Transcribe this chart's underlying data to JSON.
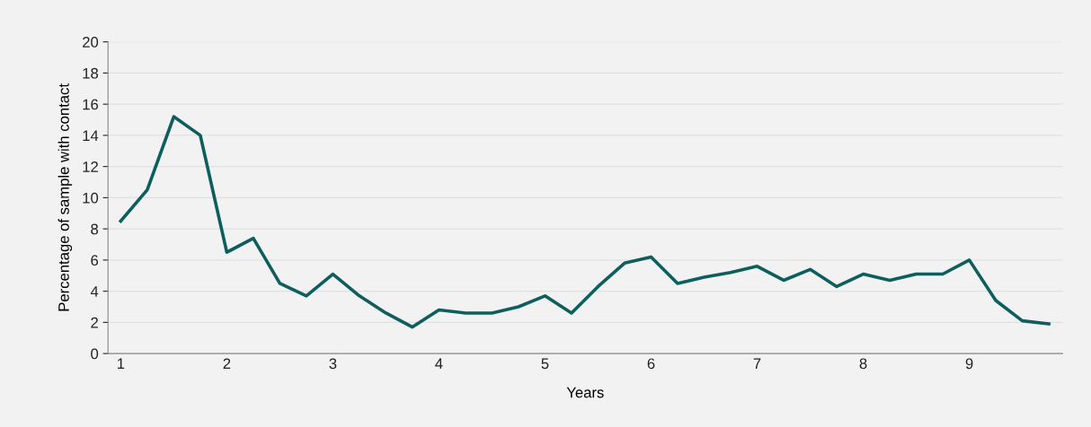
{
  "chart_data": {
    "type": "line",
    "xlabel": "Years",
    "ylabel": "Percentage of sample with contact",
    "x": [
      1,
      1.25,
      1.5,
      1.75,
      2,
      2.25,
      2.5,
      2.75,
      3,
      3.25,
      3.5,
      3.75,
      4,
      4.25,
      4.5,
      4.75,
      5,
      5.25,
      5.5,
      5.75,
      6,
      6.25,
      6.5,
      6.75,
      7,
      7.25,
      7.5,
      7.75,
      8,
      8.25,
      8.5,
      8.75,
      9,
      9.25,
      9.5,
      9.75
    ],
    "series": [
      {
        "color": "#0e5e5e",
        "values": [
          8.5,
          10.5,
          15.2,
          14.0,
          6.5,
          7.4,
          4.5,
          3.7,
          5.1,
          3.7,
          2.6,
          1.7,
          2.8,
          2.6,
          2.6,
          3.0,
          3.7,
          2.6,
          4.3,
          5.8,
          6.2,
          4.5,
          4.9,
          5.2,
          5.6,
          4.7,
          5.4,
          4.3,
          5.1,
          4.7,
          5.1,
          5.1,
          6.0,
          3.4,
          2.1,
          1.9
        ]
      }
    ],
    "xlim": [
      0.88,
      9.88
    ],
    "xticks": [
      1,
      2,
      3,
      4,
      5,
      6,
      7,
      8,
      9
    ],
    "ylim": [
      0,
      20
    ],
    "yticks": [
      0,
      2,
      4,
      6,
      8,
      10,
      12,
      14,
      16,
      18,
      20
    ],
    "grid": "y",
    "legend": false,
    "marker": "none",
    "line_style": "solid"
  }
}
